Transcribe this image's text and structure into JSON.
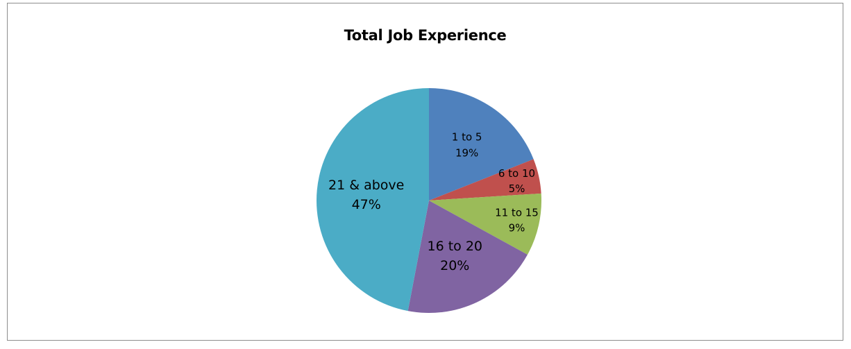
{
  "chart_data": {
    "type": "pie",
    "title": "Total Job Experience",
    "start_angle_deg": 0,
    "direction": "clockwise",
    "slices": [
      {
        "category": "1 to 5",
        "value": 19,
        "percent_label": "19%",
        "color": "#4f81bd"
      },
      {
        "category": "6 to 10",
        "value": 5,
        "percent_label": "5%",
        "color": "#c0504d"
      },
      {
        "category": "11 to 15",
        "value": 9,
        "percent_label": "9%",
        "color": "#9bbb59"
      },
      {
        "category": "16 to 20",
        "value": 20,
        "percent_label": "20%",
        "color": "#8064a2"
      },
      {
        "category": "21 & above",
        "value": 47,
        "percent_label": "47%",
        "color": "#4bacc6"
      }
    ],
    "legend": "none",
    "data_labels": "category and percentage inside slices"
  }
}
